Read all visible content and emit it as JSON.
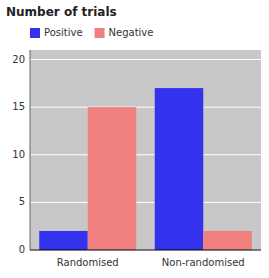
{
  "chart_data": {
    "type": "bar",
    "title": "Number of trials",
    "categories": [
      "Randomised",
      "Non-randomised"
    ],
    "series": [
      {
        "name": "Positive",
        "color": "#3333ee",
        "values": [
          2,
          17
        ]
      },
      {
        "name": "Negative",
        "color": "#f08080",
        "values": [
          15,
          2
        ]
      }
    ],
    "ylim": [
      0,
      21
    ],
    "yticks": [
      0,
      5,
      10,
      15,
      20
    ],
    "grid": true,
    "legend": "upper left"
  }
}
